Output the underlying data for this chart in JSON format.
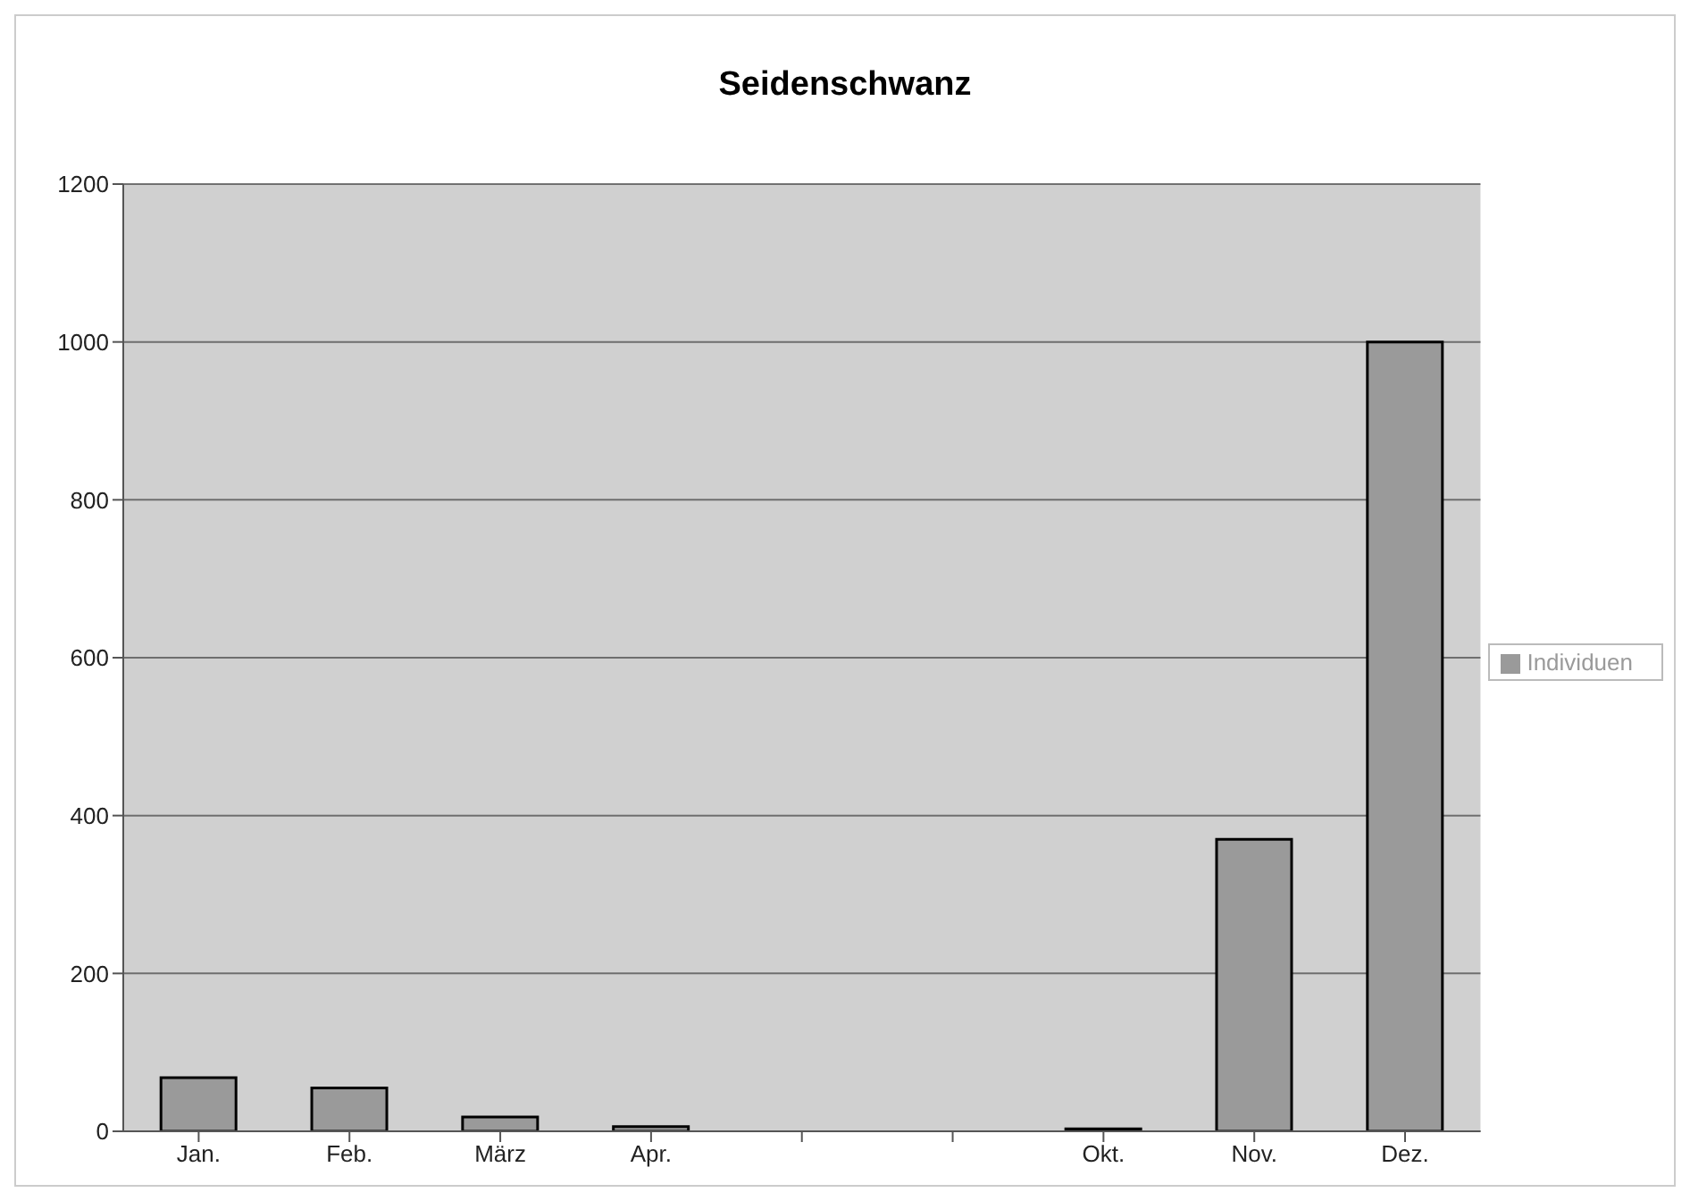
{
  "chart_data": {
    "type": "bar",
    "title": "Seidenschwanz",
    "categories": [
      "Jan.",
      "Feb.",
      "März",
      "Apr.",
      null,
      null,
      "Okt.",
      "Nov.",
      "Dez."
    ],
    "series": [
      {
        "name": "Individuen",
        "color": "#9a9a9a",
        "values": [
          68,
          55,
          18,
          6,
          null,
          null,
          3,
          370,
          1000
        ]
      }
    ],
    "ylim": [
      0,
      1200
    ],
    "yticks": [
      0,
      200,
      400,
      600,
      800,
      1000,
      1200
    ],
    "grid": "y",
    "legend": "right"
  }
}
